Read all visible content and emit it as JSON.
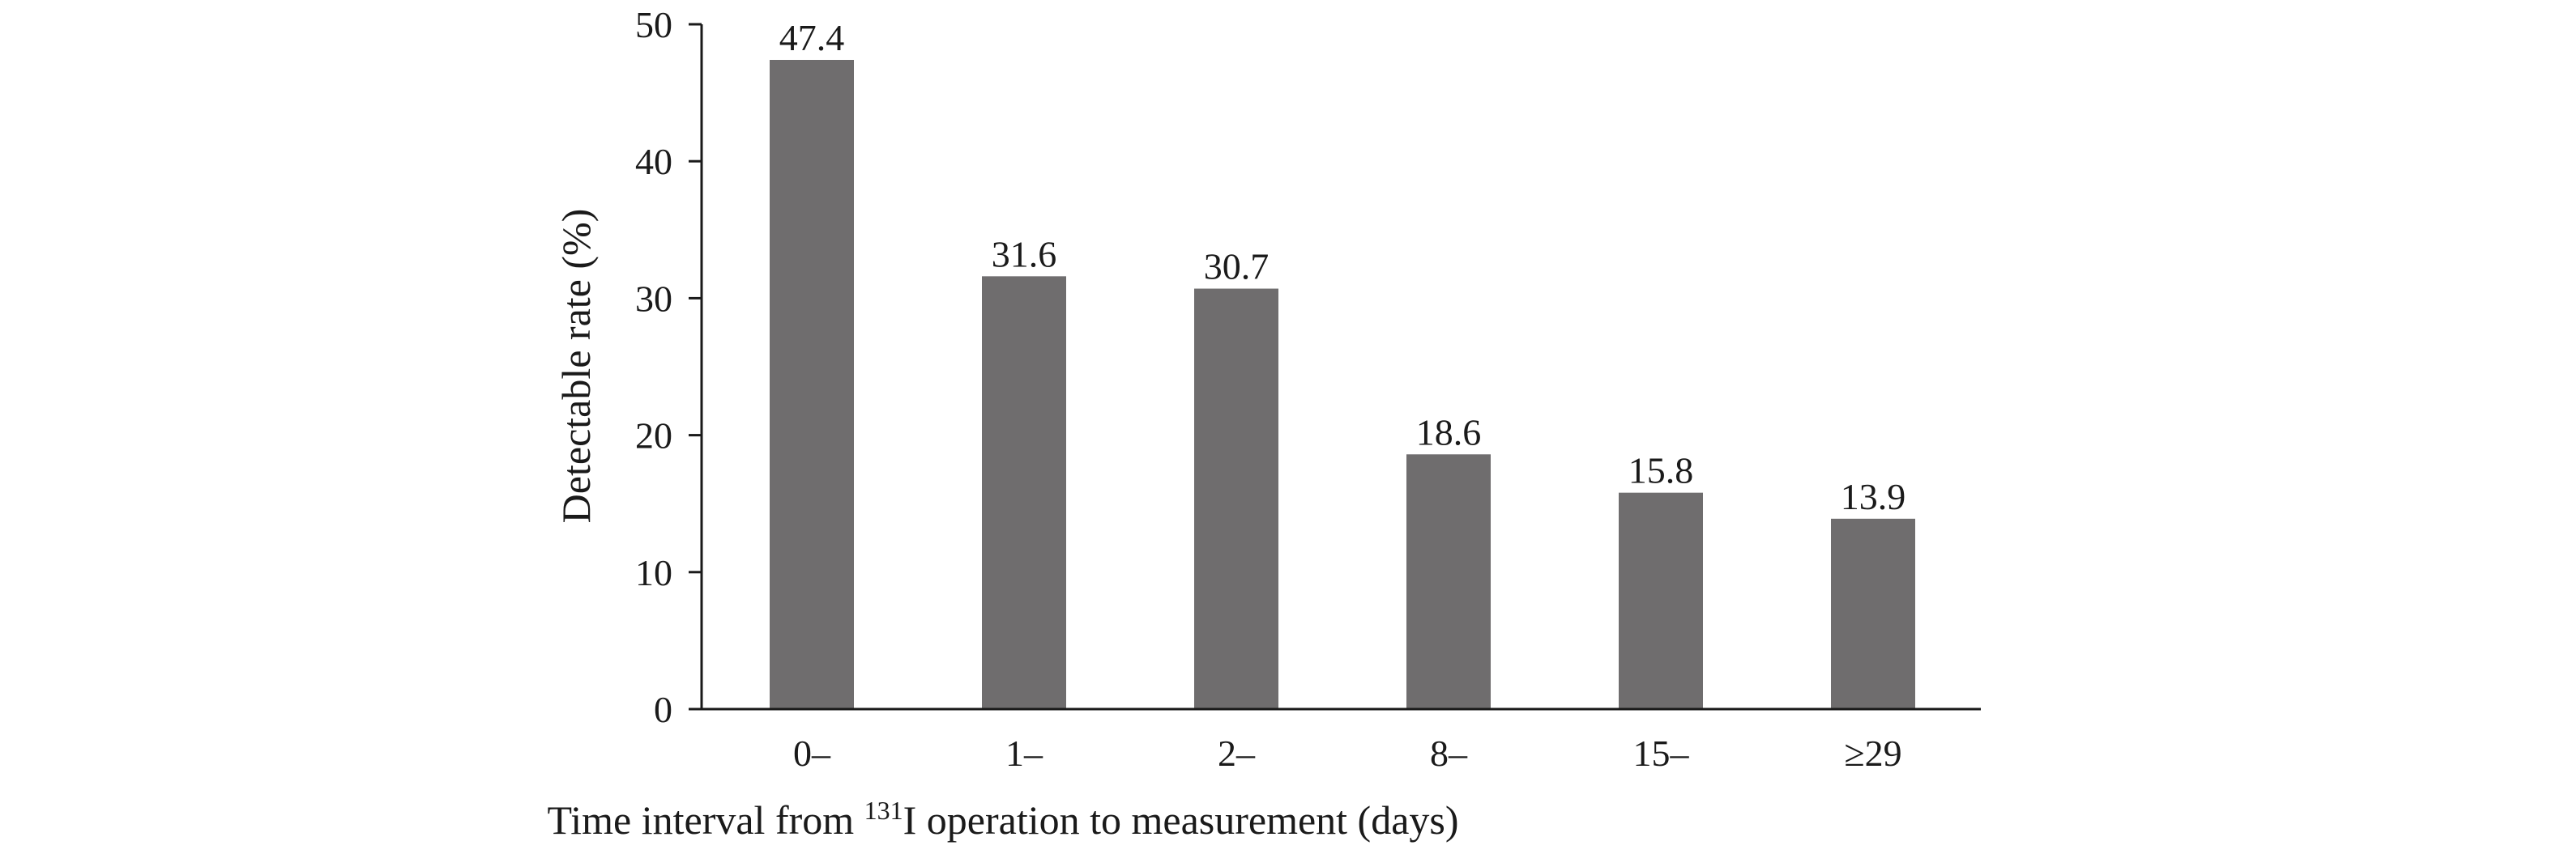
{
  "chart_data": {
    "type": "bar",
    "categories": [
      "0–",
      "1–",
      "2–",
      "8–",
      "15–",
      "≥29"
    ],
    "values": [
      47.4,
      31.6,
      30.7,
      18.6,
      15.8,
      13.9
    ],
    "value_labels": [
      "47.4",
      "31.6",
      "30.7",
      "18.6",
      "15.8",
      "13.9"
    ],
    "title": "",
    "xlabel": {
      "prefix": "Time interval from ",
      "superscript": "131",
      "suffix": "I operation to measurement (days)"
    },
    "ylabel": "Detectable rate (%)",
    "ylim": [
      0,
      50
    ],
    "yticks": [
      0,
      10,
      20,
      30,
      40,
      50
    ],
    "grid": false,
    "bar_color": "#6f6d6e"
  }
}
